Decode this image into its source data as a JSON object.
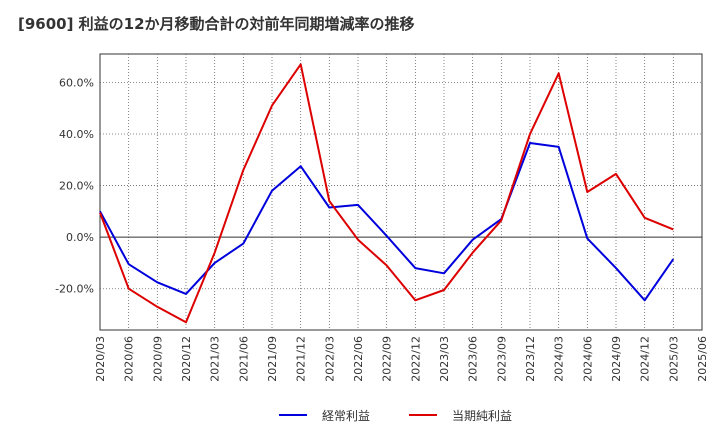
{
  "chart_data": {
    "type": "line",
    "title": "[9600]  利益の12か月移動合計の対前年同期増減率の推移",
    "xlabel": "",
    "ylabel": "",
    "ylim": [
      -36,
      71
    ],
    "yticks": [
      -20,
      0,
      20,
      40,
      60
    ],
    "ytick_labels": [
      "-20.0%",
      "0.0%",
      "20.0%",
      "40.0%",
      "60.0%"
    ],
    "x": [
      "2020/03",
      "2020/06",
      "2020/09",
      "2020/12",
      "2021/03",
      "2021/06",
      "2021/09",
      "2021/12",
      "2022/03",
      "2022/06",
      "2022/09",
      "2022/12",
      "2023/03",
      "2023/06",
      "2023/09",
      "2023/12",
      "2024/03",
      "2024/06",
      "2024/09",
      "2024/12",
      "2025/03",
      "2025/06"
    ],
    "series": [
      {
        "name": "経常利益",
        "color": "#0000dd",
        "values": [
          10.0,
          -10.5,
          -17.5,
          -22.0,
          -10.0,
          -2.5,
          18.0,
          27.5,
          11.5,
          12.5,
          0.5,
          -12.0,
          -14.0,
          -1.0,
          7.0,
          36.5,
          35.0,
          -0.5,
          -12.0,
          -24.5,
          -8.5,
          null
        ]
      },
      {
        "name": "当期純利益",
        "color": "#dd0000",
        "values": [
          9.5,
          -20.0,
          -27.0,
          -33.0,
          -6.0,
          26.0,
          51.0,
          67.0,
          14.0,
          -1.0,
          -11.0,
          -24.5,
          -20.5,
          -6.0,
          6.5,
          40.0,
          63.5,
          17.5,
          24.5,
          7.5,
          3.0,
          null
        ]
      }
    ],
    "legend_position": "bottom-center",
    "grid": true
  }
}
